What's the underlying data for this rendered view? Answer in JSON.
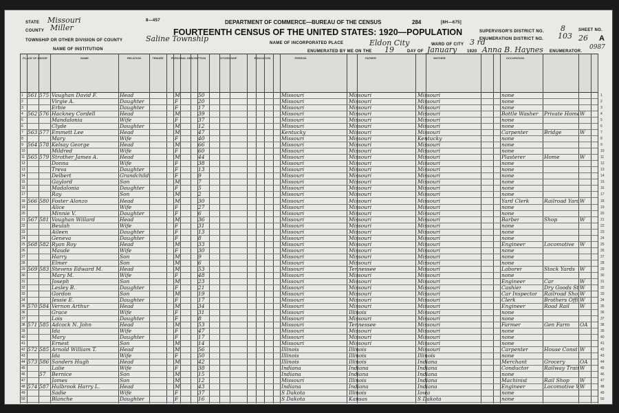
{
  "header": {
    "form_no": "8—457",
    "form_code": "[8H—675]",
    "department": "DEPARTMENT OF COMMERCE—BUREAU OF THE CENSUS",
    "title": "FOURTEENTH CENSUS OF THE UNITED STATES: 1920—POPULATION",
    "page_no": "284",
    "state_label": "STATE",
    "state": "Missouri",
    "county_label": "COUNTY",
    "county": "Miller",
    "township_label": "TOWNSHIP OR OTHER DIVISION OF COUNTY",
    "township": "Saline Township",
    "institution_label": "NAME OF INSTITUTION",
    "place_label": "NAME OF INCORPORATED PLACE",
    "place": "Eldon City",
    "supervisor_label": "SUPERVISOR'S DISTRICT NO.",
    "supervisor": "8",
    "ed_label": "ENUMERATION DISTRICT NO.",
    "ed": "103",
    "sheet_label": "SHEET NO.",
    "sheet": "26",
    "sheet_side": "A",
    "ward_label": "WARD OF CITY",
    "ward": "3 rd",
    "enumerated_label": "ENUMERATED BY ME ON THE",
    "day": "19",
    "day_label": "DAY OF",
    "month": "January",
    "year": "1920",
    "enumerator": "Anna B. Haynes",
    "enumerator_label": "ENUMERATOR.",
    "stamp": "0987"
  },
  "columns": [
    "PLACE OF ABODE",
    "NAME",
    "RELATION",
    "TENURE",
    "PERSONAL DESCRIPTION",
    "CITIZENSHIP",
    "EDUCATION",
    "PERSON",
    "FATHER",
    "MOTHER",
    "OCCUPATION"
  ],
  "rows": [
    {
      "dw": "561",
      "fam": "575",
      "name": "Vaughan David F.",
      "rel": "Head",
      "sex": "M",
      "age": "50",
      "bp": "Missouri",
      "fbp": "Missouri",
      "mbp": "Missouri",
      "occ": "none",
      "ind": ""
    },
    {
      "name": "Virgie A.",
      "rel": "Daughter",
      "sex": "F",
      "age": "20",
      "bp": "Missouri",
      "fbp": "Missouri",
      "mbp": "Missouri",
      "occ": "none"
    },
    {
      "name": "Erbie",
      "rel": "Daughter",
      "sex": "F",
      "age": "17",
      "bp": "Missouri",
      "fbp": "Missouri",
      "mbp": "Missouri",
      "occ": "none"
    },
    {
      "dw": "562",
      "fam": "576",
      "name": "Hackney Cordell",
      "rel": "Head",
      "sex": "M",
      "age": "39",
      "bp": "Missouri",
      "fbp": "Missouri",
      "mbp": "Missouri",
      "occ": "Bottle Washer",
      "ind": "Private Home",
      "cls": "W"
    },
    {
      "name": "Mandalonia",
      "rel": "Wife",
      "sex": "F",
      "age": "37",
      "bp": "Missouri",
      "fbp": "Missouri",
      "mbp": "Missouri",
      "occ": "none"
    },
    {
      "name": "Clyde",
      "rel": "Daughter",
      "sex": "M",
      "age": "12",
      "bp": "Missouri",
      "fbp": "Missouri",
      "mbp": "Missouri",
      "occ": "none"
    },
    {
      "dw": "563",
      "fam": "577",
      "name": "Emmett Lee",
      "rel": "Head",
      "sex": "M",
      "age": "47",
      "bp": "Kentucky",
      "fbp": "Missouri",
      "mbp": "Missouri",
      "occ": "Carpenter",
      "ind": "Bridge",
      "cls": "W"
    },
    {
      "name": "Mary",
      "rel": "Wife",
      "sex": "F",
      "age": "40",
      "bp": "Missouri",
      "fbp": "Missouri",
      "mbp": "Kentucky",
      "occ": "none"
    },
    {
      "dw": "564",
      "fam": "578",
      "name": "Kelsay George",
      "rel": "Head",
      "sex": "M",
      "age": "66",
      "bp": "Missouri",
      "fbp": "Missouri",
      "mbp": "Missouri",
      "occ": "none"
    },
    {
      "name": "Mildred",
      "rel": "Wife",
      "sex": "F",
      "age": "60",
      "bp": "Missouri",
      "fbp": "Missouri",
      "mbp": "Missouri",
      "occ": "none"
    },
    {
      "dw": "565",
      "fam": "579",
      "name": "Strother James A.",
      "rel": "Head",
      "sex": "M",
      "age": "44",
      "bp": "Missouri",
      "fbp": "Missouri",
      "mbp": "Missouri",
      "occ": "Plasterer",
      "ind": "Home",
      "cls": "W"
    },
    {
      "name": "Donna",
      "rel": "Wife",
      "sex": "F",
      "age": "38",
      "bp": "Missouri",
      "fbp": "Missouri",
      "mbp": "Missouri",
      "occ": "none"
    },
    {
      "name": "Treva",
      "rel": "Daughter",
      "sex": "F",
      "age": "13",
      "bp": "Missouri",
      "fbp": "Missouri",
      "mbp": "Missouri",
      "occ": "none"
    },
    {
      "name": "Delbert",
      "rel": "Grandchild",
      "sex": "F",
      "age": "9",
      "bp": "Missouri",
      "fbp": "Missouri",
      "mbp": "Missouri",
      "occ": "none"
    },
    {
      "name": "Gaylord",
      "rel": "Son",
      "sex": "M",
      "age": "7",
      "bp": "Missouri",
      "fbp": "Missouri",
      "mbp": "Missouri",
      "occ": "none"
    },
    {
      "name": "Madalonia",
      "rel": "Daughter",
      "sex": "F",
      "age": "5",
      "bp": "Missouri",
      "fbp": "Missouri",
      "mbp": "Missouri",
      "occ": "none"
    },
    {
      "name": "Ray",
      "rel": "Son",
      "sex": "M",
      "age": "2",
      "bp": "Missouri",
      "fbp": "Missouri",
      "mbp": "Missouri",
      "occ": "none"
    },
    {
      "dw": "566",
      "fam": "580",
      "name": "Foster Alonzo",
      "rel": "Head",
      "sex": "M",
      "age": "30",
      "bp": "Missouri",
      "fbp": "Missouri",
      "mbp": "Missouri",
      "occ": "Yard Clerk",
      "ind": "Railroad Yards",
      "cls": "W"
    },
    {
      "name": "Alice",
      "rel": "Wife",
      "sex": "F",
      "age": "27",
      "bp": "Missouri",
      "fbp": "Missouri",
      "mbp": "Missouri",
      "occ": "none"
    },
    {
      "name": "Minnie V.",
      "rel": "Daughter",
      "sex": "F",
      "age": "6",
      "bp": "Missouri",
      "fbp": "Missouri",
      "mbp": "Missouri",
      "occ": "none"
    },
    {
      "dw": "567",
      "fam": "581",
      "name": "Vaughan Willard",
      "rel": "Head",
      "sex": "M",
      "age": "36",
      "bp": "Missouri",
      "fbp": "Missouri",
      "mbp": "Missouri",
      "occ": "Barber",
      "ind": "Shop",
      "cls": "W"
    },
    {
      "name": "Beulah",
      "rel": "Wife",
      "sex": "F",
      "age": "31",
      "bp": "Missouri",
      "fbp": "Missouri",
      "mbp": "Missouri",
      "occ": "none"
    },
    {
      "name": "Aileen",
      "rel": "Daughter",
      "sex": "F",
      "age": "13",
      "bp": "Missouri",
      "fbp": "Missouri",
      "mbp": "Missouri",
      "occ": "none"
    },
    {
      "name": "Geneva",
      "rel": "Daughter",
      "sex": "F",
      "age": "8",
      "bp": "Missouri",
      "fbp": "Missouri",
      "mbp": "Missouri",
      "occ": "none"
    },
    {
      "dw": "568",
      "fam": "582",
      "name": "Ryan Roy",
      "rel": "Head",
      "sex": "M",
      "age": "33",
      "bp": "Missouri",
      "fbp": "Missouri",
      "mbp": "Missouri",
      "occ": "Engineer",
      "ind": "Locomotive",
      "cls": "W"
    },
    {
      "name": "Maude",
      "rel": "Wife",
      "sex": "F",
      "age": "30",
      "bp": "Missouri",
      "fbp": "Missouri",
      "mbp": "Missouri",
      "occ": "none"
    },
    {
      "name": "Harry",
      "rel": "Son",
      "sex": "M",
      "age": "9",
      "bp": "Missouri",
      "fbp": "Missouri",
      "mbp": "Missouri",
      "occ": "none"
    },
    {
      "name": "Elmer",
      "rel": "Son",
      "sex": "M",
      "age": "6",
      "bp": "Missouri",
      "fbp": "Missouri",
      "mbp": "Missouri",
      "occ": "none"
    },
    {
      "dw": "569",
      "fam": "583",
      "name": "Stevens Edward M.",
      "rel": "Head",
      "sex": "M",
      "age": "53",
      "bp": "Missouri",
      "fbp": "Tennessee",
      "mbp": "Missouri",
      "occ": "Laborer",
      "ind": "Stock Yards",
      "cls": "W"
    },
    {
      "name": "Mary M.",
      "rel": "Wife",
      "sex": "F",
      "age": "48",
      "bp": "Missouri",
      "fbp": "Missouri",
      "mbp": "Missouri",
      "occ": "none"
    },
    {
      "name": "Joseph",
      "rel": "Son",
      "sex": "M",
      "age": "23",
      "bp": "Missouri",
      "fbp": "Missouri",
      "mbp": "Missouri",
      "occ": "Engineer",
      "ind": "Car",
      "cls": "W"
    },
    {
      "name": "Lesley B.",
      "rel": "Daughter",
      "sex": "F",
      "age": "21",
      "bp": "Missouri",
      "fbp": "Missouri",
      "mbp": "Missouri",
      "occ": "Cashier",
      "ind": "Dry Goods Store",
      "cls": "W"
    },
    {
      "name": "Gordon",
      "rel": "Son",
      "sex": "M",
      "age": "19",
      "bp": "Missouri",
      "fbp": "Missouri",
      "mbp": "Missouri",
      "occ": "Car Inspector",
      "ind": "Railroad Shop",
      "cls": "W"
    },
    {
      "name": "Jessie E.",
      "rel": "Daughter",
      "sex": "F",
      "age": "17",
      "bp": "Missouri",
      "fbp": "Missouri",
      "mbp": "Missouri",
      "occ": "Clerk",
      "ind": "Brothers Office",
      "cls": "W"
    },
    {
      "dw": "570",
      "fam": "584",
      "name": "Vernon Arthur",
      "rel": "Head",
      "sex": "M",
      "age": "34",
      "bp": "Missouri",
      "fbp": "Missouri",
      "mbp": "Missouri",
      "occ": "Engineer",
      "ind": "Road Rail",
      "cls": "W"
    },
    {
      "name": "Grace",
      "rel": "Wife",
      "sex": "F",
      "age": "31",
      "bp": "Missouri",
      "fbp": "Illinois",
      "mbp": "Missouri",
      "occ": "none"
    },
    {
      "name": "Lois",
      "rel": "Daughter",
      "sex": "F",
      "age": "8",
      "bp": "Missouri",
      "fbp": "Missouri",
      "mbp": "Missouri",
      "occ": "none"
    },
    {
      "dw": "571",
      "fam": "585",
      "name": "Adcock N. John",
      "rel": "Head",
      "sex": "M",
      "age": "53",
      "bp": "Missouri",
      "fbp": "Tennessee",
      "mbp": "Missouri",
      "occ": "Farmer",
      "ind": "Gen Farm",
      "cls": "OA"
    },
    {
      "name": "Ida",
      "rel": "Wife",
      "sex": "F",
      "age": "47",
      "bp": "Missouri",
      "fbp": "Missouri",
      "mbp": "Missouri",
      "occ": "none"
    },
    {
      "name": "Mary",
      "rel": "Daughter",
      "sex": "F",
      "age": "17",
      "bp": "Missouri",
      "fbp": "Missouri",
      "mbp": "Missouri",
      "occ": "none"
    },
    {
      "name": "Ernest",
      "rel": "Son",
      "sex": "M",
      "age": "14",
      "bp": "Missouri",
      "fbp": "Missouri",
      "mbp": "Missouri",
      "occ": "none"
    },
    {
      "dw": "572",
      "fam": "585",
      "name": "Arnold William T.",
      "rel": "Head",
      "sex": "M",
      "age": "56",
      "bp": "Illinois",
      "fbp": "Illinois",
      "mbp": "Missouri",
      "occ": "Carpenter",
      "ind": "House Const",
      "cls": "W"
    },
    {
      "name": "Ida",
      "rel": "Wife",
      "sex": "F",
      "age": "50",
      "bp": "Illinois",
      "fbp": "Illinois",
      "mbp": "Illinois",
      "occ": "none"
    },
    {
      "dw": "573",
      "fam": "586",
      "name": "Sanders Hugh",
      "rel": "Head",
      "sex": "M",
      "age": "42",
      "bp": "Illinois",
      "fbp": "Illinois",
      "mbp": "Indiana",
      "occ": "Merchant",
      "ind": "Grocery",
      "cls": "OA"
    },
    {
      "name": "Lalie",
      "rel": "Wife",
      "sex": "F",
      "age": "38",
      "bp": "Indiana",
      "fbp": "Indiana",
      "mbp": "Indiana",
      "occ": "Conductor",
      "ind": "Railway Train",
      "cls": "W"
    },
    {
      "fam": "57",
      "name": "Bernice",
      "rel": "Son",
      "sex": "M",
      "age": "15",
      "bp": "Indiana",
      "fbp": "Indiana",
      "mbp": "Indiana",
      "occ": "none"
    },
    {
      "name": "James",
      "rel": "Son",
      "sex": "M",
      "age": "12",
      "bp": "Missouri",
      "fbp": "Illinois",
      "mbp": "Indiana",
      "occ": "Machinist",
      "ind": "Rail Shop",
      "cls": "W"
    },
    {
      "dw": "574",
      "fam": "587",
      "name": "Hulbrook Harry L.",
      "rel": "Head",
      "sex": "M",
      "age": "43",
      "bp": "Indiana",
      "fbp": "Indiana",
      "mbp": "Indiana",
      "occ": "Engineer",
      "ind": "Locomotive Works",
      "cls": "W"
    },
    {
      "name": "Sadie",
      "rel": "Wife",
      "sex": "F",
      "age": "37",
      "bp": "S Dakota",
      "fbp": "Illinois",
      "mbp": "Iowa",
      "occ": "none"
    },
    {
      "name": "Blanche",
      "rel": "Daughter",
      "sex": "F",
      "age": "16",
      "bp": "S Dakota",
      "fbp": "Kansas",
      "mbp": "S Dakota",
      "occ": "none"
    }
  ]
}
